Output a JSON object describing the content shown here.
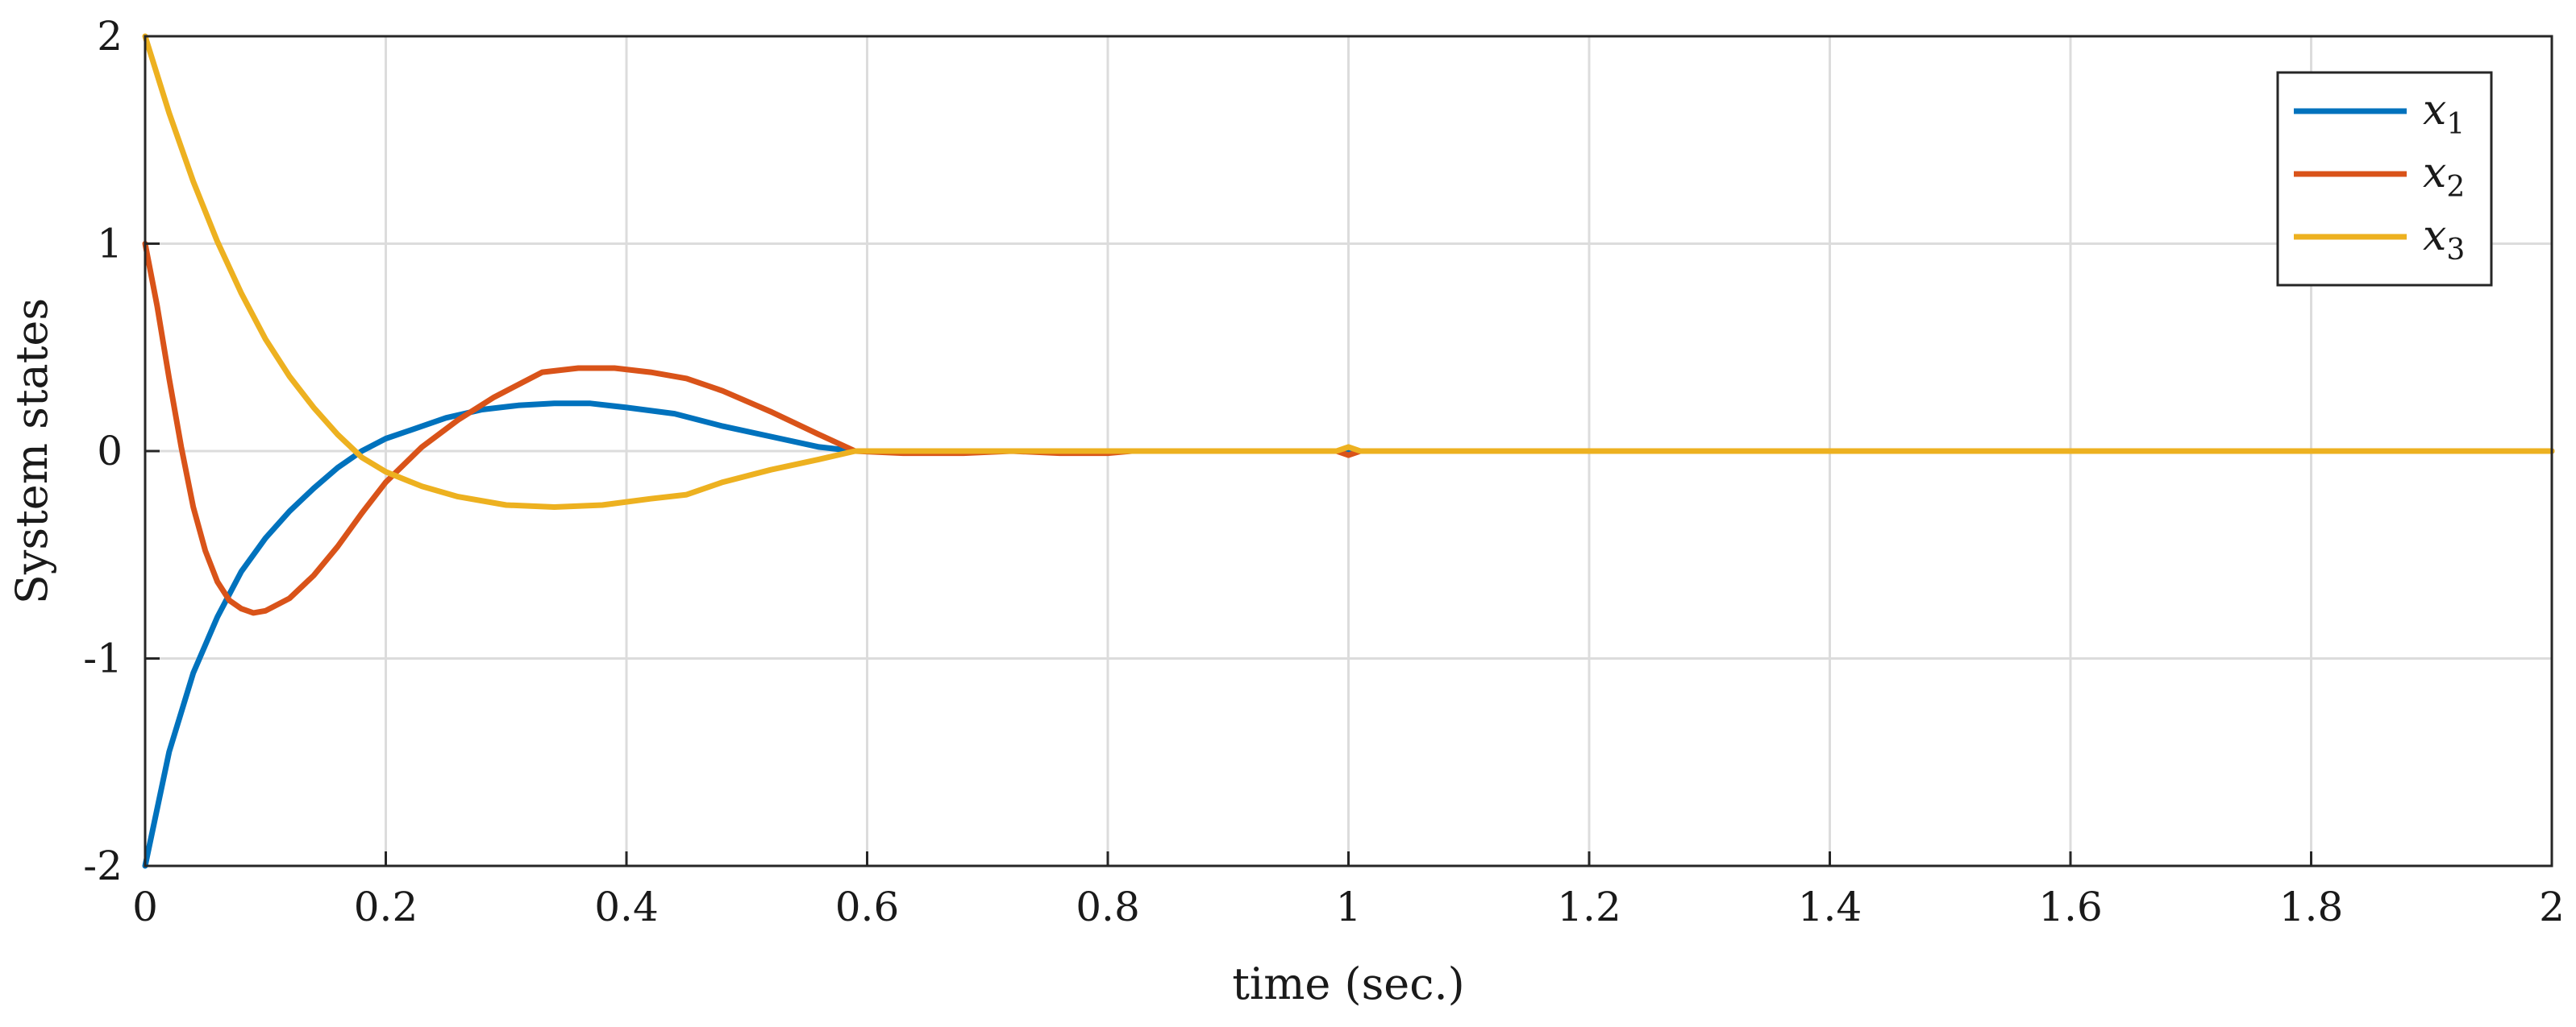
{
  "chart_data": {
    "type": "line",
    "title": "",
    "xlabel": "time (sec.)",
    "ylabel": "System states",
    "xlim": [
      0,
      2
    ],
    "ylim": [
      -2,
      2
    ],
    "x_ticks": [
      0,
      0.2,
      0.4,
      0.6,
      0.8,
      1,
      1.2,
      1.4,
      1.6,
      1.8,
      2
    ],
    "x_tick_labels": [
      "0",
      "0.2",
      "0.4",
      "0.6",
      "0.8",
      "1",
      "1.2",
      "1.4",
      "1.6",
      "1.8",
      "2"
    ],
    "y_ticks": [
      -2,
      -1,
      0,
      1,
      2
    ],
    "y_tick_labels": [
      "-2",
      "-1",
      "0",
      "1",
      "2"
    ],
    "grid": true,
    "legend_position": "top-right",
    "series": [
      {
        "name": "x1",
        "legend_base": "x",
        "legend_sub": "1",
        "color": "#0072BD",
        "points": [
          [
            0,
            -2
          ],
          [
            0.02,
            -1.45
          ],
          [
            0.04,
            -1.07
          ],
          [
            0.06,
            -0.8
          ],
          [
            0.08,
            -0.58
          ],
          [
            0.1,
            -0.42
          ],
          [
            0.12,
            -0.29
          ],
          [
            0.14,
            -0.18
          ],
          [
            0.16,
            -0.08
          ],
          [
            0.18,
            0.0
          ],
          [
            0.2,
            0.06
          ],
          [
            0.22,
            0.1
          ],
          [
            0.25,
            0.16
          ],
          [
            0.28,
            0.2
          ],
          [
            0.31,
            0.22
          ],
          [
            0.34,
            0.23
          ],
          [
            0.37,
            0.23
          ],
          [
            0.4,
            0.21
          ],
          [
            0.44,
            0.18
          ],
          [
            0.48,
            0.12
          ],
          [
            0.52,
            0.07
          ],
          [
            0.56,
            0.02
          ],
          [
            0.59,
            0.0
          ],
          [
            0.7,
            0.0
          ],
          [
            0.8,
            0.0
          ],
          [
            1.0,
            0.0
          ],
          [
            2.0,
            0.0
          ]
        ]
      },
      {
        "name": "x2",
        "legend_base": "x",
        "legend_sub": "2",
        "color": "#D95319",
        "points": [
          [
            0,
            1.0
          ],
          [
            0.01,
            0.7
          ],
          [
            0.02,
            0.35
          ],
          [
            0.03,
            0.02
          ],
          [
            0.04,
            -0.27
          ],
          [
            0.05,
            -0.48
          ],
          [
            0.06,
            -0.63
          ],
          [
            0.07,
            -0.72
          ],
          [
            0.08,
            -0.76
          ],
          [
            0.09,
            -0.78
          ],
          [
            0.1,
            -0.77
          ],
          [
            0.12,
            -0.71
          ],
          [
            0.14,
            -0.6
          ],
          [
            0.16,
            -0.46
          ],
          [
            0.18,
            -0.3
          ],
          [
            0.2,
            -0.15
          ],
          [
            0.23,
            0.02
          ],
          [
            0.26,
            0.15
          ],
          [
            0.29,
            0.26
          ],
          [
            0.33,
            0.38
          ],
          [
            0.36,
            0.4
          ],
          [
            0.39,
            0.4
          ],
          [
            0.42,
            0.38
          ],
          [
            0.45,
            0.35
          ],
          [
            0.48,
            0.29
          ],
          [
            0.52,
            0.19
          ],
          [
            0.56,
            0.08
          ],
          [
            0.59,
            0.0
          ],
          [
            0.63,
            -0.01
          ],
          [
            0.68,
            -0.01
          ],
          [
            0.72,
            0.0
          ],
          [
            0.76,
            -0.01
          ],
          [
            0.8,
            -0.01
          ],
          [
            0.82,
            0.0
          ],
          [
            0.99,
            0.0
          ],
          [
            1.0,
            -0.02
          ],
          [
            1.01,
            0.0
          ],
          [
            2.0,
            0.0
          ]
        ]
      },
      {
        "name": "x3",
        "legend_base": "x",
        "legend_sub": "3",
        "color": "#EDB120",
        "points": [
          [
            0,
            2.0
          ],
          [
            0.02,
            1.63
          ],
          [
            0.04,
            1.3
          ],
          [
            0.06,
            1.01
          ],
          [
            0.08,
            0.76
          ],
          [
            0.1,
            0.54
          ],
          [
            0.12,
            0.36
          ],
          [
            0.14,
            0.21
          ],
          [
            0.16,
            0.08
          ],
          [
            0.18,
            -0.03
          ],
          [
            0.2,
            -0.1
          ],
          [
            0.23,
            -0.17
          ],
          [
            0.26,
            -0.22
          ],
          [
            0.3,
            -0.26
          ],
          [
            0.34,
            -0.27
          ],
          [
            0.38,
            -0.26
          ],
          [
            0.42,
            -0.23
          ],
          [
            0.45,
            -0.21
          ],
          [
            0.48,
            -0.15
          ],
          [
            0.52,
            -0.09
          ],
          [
            0.56,
            -0.04
          ],
          [
            0.59,
            0.0
          ],
          [
            0.99,
            0.0
          ],
          [
            1.0,
            0.02
          ],
          [
            1.01,
            0.0
          ],
          [
            2.0,
            0.0
          ]
        ]
      }
    ]
  }
}
